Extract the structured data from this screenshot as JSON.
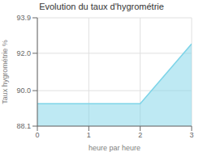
{
  "chart_data": {
    "type": "area",
    "title": "Evolution du taux d'hygrométrie",
    "xlabel": "heure par heure",
    "ylabel": "Taux hygrométrie %",
    "x": [
      0,
      1,
      2,
      3
    ],
    "values": [
      89.3,
      89.3,
      89.3,
      92.5
    ],
    "xlim": [
      0,
      3
    ],
    "ylim": [
      88.1,
      93.9
    ],
    "xticks": [
      0,
      1,
      2,
      3
    ],
    "yticks": [
      88.1,
      {
        "value": 90,
        "label": "90.0"
      },
      {
        "value": 92,
        "label": "92.0"
      },
      93.9
    ],
    "color": "#7dd4e8",
    "grid": true
  }
}
